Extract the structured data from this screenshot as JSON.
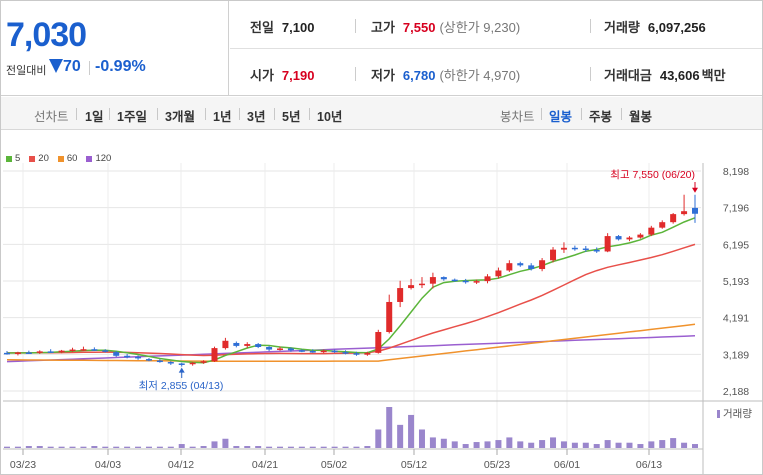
{
  "summary": {
    "current_price": "7,030",
    "diff_label": "전일대비",
    "diff_value": "70",
    "diff_rate": "-0.99%",
    "direction": "down",
    "prev_close_label": "전일",
    "prev_close": "7,100",
    "high_label": "고가",
    "high": "7,550",
    "upper_limit": "(상한가 9,230)",
    "volume_label": "거래량",
    "volume": "6,097,256",
    "open_label": "시가",
    "open": "7,190",
    "low_label": "저가",
    "low": "6,780",
    "lower_limit": "(하한가 4,970)",
    "amount_label": "거래대금",
    "amount": "43,606",
    "amount_unit": "백만"
  },
  "period_bar": {
    "line_chart_label": "선차트",
    "line_periods": [
      "1일",
      "1주일",
      "3개월",
      "1년",
      "3년",
      "5년",
      "10년"
    ],
    "candle_chart_label": "봉차트",
    "candle_periods": [
      "일봉",
      "주봉",
      "월봉"
    ],
    "active_candle_period": "일봉"
  },
  "legend": [
    {
      "label": "5",
      "color": "#5bb53a"
    },
    {
      "label": "20",
      "color": "#e8504a"
    },
    {
      "label": "60",
      "color": "#f0922c"
    },
    {
      "label": "120",
      "color": "#9a5fd0"
    }
  ],
  "chart_data": {
    "type": "candlestick",
    "y_ticks": [
      "8,198",
      "7,196",
      "6,195",
      "5,193",
      "4,191",
      "3,189",
      "2,188"
    ],
    "ylim": [
      2188,
      8198
    ],
    "x_ticks": [
      "03/23",
      "04/03",
      "04/12",
      "04/21",
      "05/02",
      "05/12",
      "05/23",
      "06/01",
      "06/13"
    ],
    "annotations": {
      "max": {
        "text": "최고 7,550 (06/20)",
        "value": 7550
      },
      "min": {
        "text": "최저 2,855 (04/13)",
        "value": 2855
      }
    },
    "volume_label": "거래량",
    "candles": [
      [
        3230,
        3280,
        3180,
        3210
      ],
      [
        3200,
        3260,
        3160,
        3240
      ],
      [
        3240,
        3290,
        3200,
        3230
      ],
      [
        3230,
        3300,
        3200,
        3270
      ],
      [
        3270,
        3330,
        3230,
        3260
      ],
      [
        3260,
        3310,
        3220,
        3290
      ],
      [
        3290,
        3370,
        3260,
        3320
      ],
      [
        3320,
        3400,
        3280,
        3330
      ],
      [
        3330,
        3380,
        3280,
        3300
      ],
      [
        3300,
        3330,
        3240,
        3270
      ],
      [
        3250,
        3280,
        3120,
        3150
      ],
      [
        3150,
        3200,
        3080,
        3120
      ],
      [
        3120,
        3160,
        3040,
        3080
      ],
      [
        3060,
        3090,
        3000,
        3040
      ],
      [
        3020,
        3060,
        2960,
        2990
      ],
      [
        2980,
        3000,
        2900,
        2940
      ],
      [
        2940,
        2960,
        2855,
        2920
      ],
      [
        2920,
        2980,
        2880,
        2960
      ],
      [
        2960,
        3030,
        2930,
        3000
      ],
      [
        3000,
        3400,
        2980,
        3360
      ],
      [
        3360,
        3640,
        3320,
        3560
      ],
      [
        3500,
        3540,
        3380,
        3420
      ],
      [
        3420,
        3520,
        3360,
        3470
      ],
      [
        3470,
        3500,
        3360,
        3390
      ],
      [
        3390,
        3420,
        3280,
        3320
      ],
      [
        3320,
        3400,
        3290,
        3350
      ],
      [
        3350,
        3380,
        3260,
        3300
      ],
      [
        3300,
        3330,
        3250,
        3280
      ],
      [
        3280,
        3330,
        3230,
        3260
      ],
      [
        3260,
        3320,
        3220,
        3290
      ],
      [
        3290,
        3320,
        3230,
        3250
      ],
      [
        3250,
        3300,
        3190,
        3220
      ],
      [
        3220,
        3260,
        3150,
        3180
      ],
      [
        3180,
        3260,
        3150,
        3230
      ],
      [
        3230,
        3860,
        3210,
        3800
      ],
      [
        3800,
        4820,
        3760,
        4620
      ],
      [
        4620,
        5200,
        4480,
        5000
      ],
      [
        5000,
        5250,
        4960,
        5080
      ],
      [
        5080,
        5300,
        5000,
        5120
      ],
      [
        5120,
        5420,
        4990,
        5300
      ],
      [
        5300,
        5320,
        5200,
        5240
      ],
      [
        5230,
        5260,
        5170,
        5200
      ],
      [
        5200,
        5250,
        5120,
        5160
      ],
      [
        5160,
        5230,
        5110,
        5190
      ],
      [
        5190,
        5380,
        5130,
        5320
      ],
      [
        5320,
        5560,
        5260,
        5480
      ],
      [
        5480,
        5760,
        5440,
        5680
      ],
      [
        5680,
        5720,
        5580,
        5620
      ],
      [
        5620,
        5680,
        5480,
        5520
      ],
      [
        5520,
        5820,
        5460,
        5760
      ],
      [
        5760,
        6120,
        5700,
        6050
      ],
      [
        6050,
        6250,
        5960,
        6100
      ],
      [
        6100,
        6160,
        6020,
        6080
      ],
      [
        6080,
        6150,
        5990,
        6040
      ],
      [
        6040,
        6110,
        5960,
        6000
      ],
      [
        6000,
        6500,
        5980,
        6420
      ],
      [
        6420,
        6450,
        6300,
        6330
      ],
      [
        6330,
        6420,
        6280,
        6380
      ],
      [
        6380,
        6500,
        6350,
        6460
      ],
      [
        6460,
        6700,
        6420,
        6650
      ],
      [
        6650,
        6850,
        6620,
        6800
      ],
      [
        6800,
        7050,
        6760,
        7020
      ],
      [
        7020,
        7550,
        6980,
        7100
      ],
      [
        7190,
        7550,
        6780,
        7030
      ]
    ],
    "volumes": [
      2,
      2,
      3,
      3,
      2,
      2,
      2,
      2,
      3,
      2,
      2,
      2,
      2,
      2,
      2,
      2,
      6,
      2,
      3,
      10,
      14,
      3,
      3,
      3,
      2,
      2,
      2,
      2,
      2,
      2,
      2,
      2,
      2,
      3,
      28,
      62,
      35,
      50,
      28,
      16,
      14,
      10,
      6,
      9,
      10,
      12,
      16,
      10,
      8,
      12,
      16,
      10,
      8,
      8,
      6,
      12,
      8,
      8,
      6,
      10,
      12,
      15,
      8,
      6
    ]
  }
}
